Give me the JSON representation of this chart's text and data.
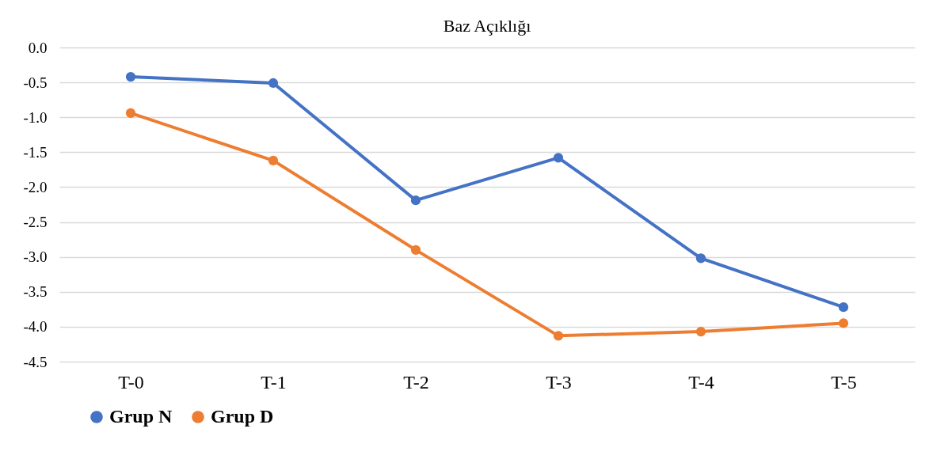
{
  "chart_data": {
    "type": "line",
    "title": "Baz Açıklığı",
    "categories": [
      "T-0",
      "T-1",
      "T-2",
      "T-3",
      "T-4",
      "T-5"
    ],
    "series": [
      {
        "name": "Grup N",
        "color": "#4472c4",
        "values": [
          -0.42,
          -0.51,
          -2.19,
          -1.58,
          -3.02,
          -3.72
        ]
      },
      {
        "name": "Grup D",
        "color": "#ed7d31",
        "values": [
          -0.94,
          -1.62,
          -2.9,
          -4.13,
          -4.07,
          -3.95
        ]
      }
    ],
    "ylim": [
      -4.5,
      0
    ],
    "yticks": [
      {
        "value": 0,
        "label": "0.0"
      },
      -0.5,
      {
        "value": -1,
        "label": "-1.0"
      },
      -1.5,
      {
        "value": -2,
        "label": "-2.0"
      },
      -2.5,
      {
        "value": -3,
        "label": "-3.0"
      },
      -3.5,
      {
        "value": -4,
        "label": "-4.0"
      },
      -4.5
    ],
    "grid": "y",
    "legend": "bottom left",
    "marker": "circle",
    "line_style": "solid"
  }
}
